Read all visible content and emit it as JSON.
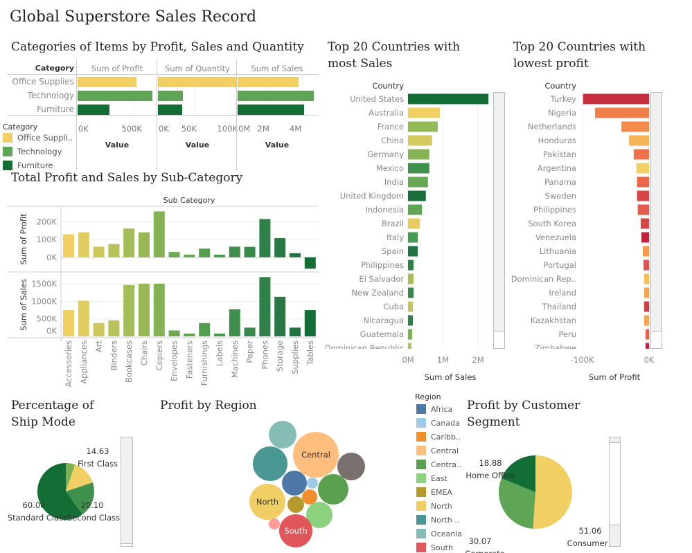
{
  "title": "Global Superstore Sales Record",
  "colors": {
    "office_supplies": "#f1cf63",
    "technology": "#5fa556",
    "furniture": "#136e36"
  },
  "chart_data": [
    {
      "id": "categories",
      "type": "bar",
      "title": "Categories of Items by Profit, Sales and Quantity",
      "row_header": "Category",
      "categories": [
        "Office Supplies",
        "Technology",
        "Furniture"
      ],
      "series": [
        {
          "name": "Sum of Profit",
          "values": [
            519000,
            664000,
            283000
          ],
          "ticks": [
            "0K",
            "500K"
          ],
          "tick_values": [
            0,
            500000
          ],
          "max": 700000
        },
        {
          "name": "Sum of Quantity",
          "values": [
            109000,
            35000,
            34000
          ],
          "ticks": [
            "0K",
            "50K",
            "100K"
          ],
          "tick_values": [
            0,
            50000,
            100000
          ],
          "max": 110000
        },
        {
          "name": "Sum of Sales",
          "values": [
            3790000,
            4740000,
            4110000
          ],
          "ticks": [
            "0M",
            "2M",
            "4M"
          ],
          "tick_values": [
            0,
            2000000,
            4000000
          ],
          "max": 4900000
        }
      ],
      "xlabel": "Value",
      "legend": {
        "title": "Category",
        "items": [
          "Office Suppli..",
          "Technology",
          "Furniture"
        ],
        "placement": "bottom-left"
      }
    },
    {
      "id": "subcategory",
      "type": "bar",
      "title": "Total Profit and Sales by Sub-Category",
      "xlabel": "Sub Category",
      "categories": [
        "Accessories",
        "Appliances",
        "Art",
        "Binders",
        "Bookcases",
        "Chairs",
        "Copiers",
        "Envelopes",
        "Fasteners",
        "Furnishings",
        "Labels",
        "Machines",
        "Paper",
        "Phones",
        "Storage",
        "Supplies",
        "Tables"
      ],
      "series": [
        {
          "name": "Sum of Profit",
          "values": [
            130000,
            141000,
            60000,
            75000,
            162000,
            141000,
            259000,
            30000,
            15000,
            49000,
            15000,
            60000,
            59000,
            216000,
            108000,
            23000,
            -64000
          ],
          "ticks": [
            "200K",
            "100K",
            "0K"
          ],
          "tick_values": [
            200000,
            100000,
            0
          ],
          "ylim": [
            -75000,
            280000
          ]
        },
        {
          "name": "Sum of Sales",
          "values": [
            750000,
            1019000,
            381000,
            456000,
            1469000,
            1506000,
            1506000,
            169000,
            81000,
            381000,
            81000,
            775000,
            250000,
            1694000,
            1131000,
            250000,
            750000
          ],
          "ticks": [
            "1500K",
            "1000K",
            "500K",
            "0K"
          ],
          "tick_values": [
            1500000,
            1000000,
            500000,
            0
          ],
          "ylim": [
            0,
            1800000
          ]
        }
      ],
      "bar_colors": [
        "#f1cf63",
        "#e0cd60",
        "#cdc75b",
        "#b9c25a",
        "#a5bd58",
        "#96b955",
        "#84b152",
        "#6eaa51",
        "#62a551",
        "#529f50",
        "#479a4e",
        "#3e904c",
        "#37894a",
        "#2f8048",
        "#2a7746",
        "#217241",
        "#136e36"
      ]
    },
    {
      "id": "top-sales",
      "type": "bar",
      "title": "Top 20 Countries with most Sales",
      "row_header": "Country",
      "xlabel": "Sum of Sales",
      "ticks": [
        "0M",
        "1M",
        "2M"
      ],
      "tick_values": [
        0,
        1000000,
        2000000
      ],
      "xlim": [
        0,
        2450000
      ],
      "categories": [
        "United States",
        "Australia",
        "France",
        "China",
        "Germany",
        "Mexico",
        "India",
        "United Kingdom",
        "Indonesia",
        "Brazil",
        "Italy",
        "Spain",
        "Philippines",
        "El Salvador",
        "New Zealand",
        "Cuba",
        "Nicaragua",
        "Guatemala",
        "Dominican Republic"
      ],
      "values": [
        2300000,
        910000,
        850000,
        690000,
        610000,
        610000,
        570000,
        510000,
        400000,
        340000,
        280000,
        280000,
        160000,
        160000,
        160000,
        140000,
        140000,
        120000,
        100000
      ],
      "bar_colors": [
        "#136e36",
        "#f1cf63",
        "#93b957",
        "#d5ca5f",
        "#86b455",
        "#3e904c",
        "#66a853",
        "#1a6c38",
        "#5ea556",
        "#e8cc60",
        "#459a4f",
        "#217241",
        "#2f8048",
        "#a8bf59",
        "#37894a",
        "#c4c45c",
        "#2f8048",
        "#7cb052",
        "#b0c25a"
      ]
    },
    {
      "id": "lowest-profit",
      "type": "bar",
      "title": "Top 20 Countries with lowest profit",
      "row_header": "Country",
      "xlabel": "Sum of Profit",
      "ticks": [
        "-100K",
        "0K"
      ],
      "tick_values": [
        -100000,
        0
      ],
      "xlim": [
        -101000,
        0
      ],
      "categories": [
        "Turkey",
        "Nigeria",
        "Netherlands",
        "Honduras",
        "Pakistan",
        "Argentina",
        "Panama",
        "Sweden",
        "Philippines",
        "South Korea",
        "Venezuela",
        "Lithuania",
        "Portugal",
        "Dominican Rep..",
        "Ireland",
        "Thailand",
        "Kazakhstan",
        "Peru",
        "Zimbabwe"
      ],
      "values": [
        -99000,
        -81000,
        -41500,
        -30000,
        -23000,
        -19000,
        -18000,
        -18000,
        -17000,
        -12500,
        -11400,
        -9300,
        -8300,
        -7300,
        -7300,
        -7300,
        -7300,
        -5200,
        -5200
      ],
      "bar_colors": [
        "#c52f40",
        "#f17f49",
        "#f58b4b",
        "#f5b257",
        "#ef7149",
        "#f1cf63",
        "#ea6849",
        "#d74545",
        "#e35b4a",
        "#d74545",
        "#c1233f",
        "#f7974f",
        "#e0524a",
        "#f4bd5a",
        "#f6a352",
        "#d23e45",
        "#f6a352",
        "#e8604a",
        "#c1233f"
      ]
    },
    {
      "id": "ship-mode",
      "type": "pie",
      "title": "Percentage of Ship Mode",
      "slices": [
        {
          "label": "",
          "value": 5.27,
          "color": "#7cb052"
        },
        {
          "label": "First Class",
          "value": 14.63,
          "color": "#f1cf63"
        },
        {
          "label": "Second Class",
          "value": 20.1,
          "color": "#3e904c"
        },
        {
          "label": "Standard Class",
          "value": 60.0,
          "color": "#136e36"
        }
      ]
    },
    {
      "id": "region",
      "type": "bubble",
      "title": "Profit by Region",
      "legend": {
        "title": "Region",
        "placement": "right",
        "items": [
          {
            "label": "Africa",
            "color": "#4e79a7"
          },
          {
            "label": "Canada",
            "color": "#a0cbe8"
          },
          {
            "label": "Caribb..",
            "color": "#f28e2b"
          },
          {
            "label": "Central",
            "color": "#ffbe7d"
          },
          {
            "label": "Centra..",
            "color": "#59a14f"
          },
          {
            "label": "East",
            "color": "#8cd17d"
          },
          {
            "label": "EMEA",
            "color": "#b6992d"
          },
          {
            "label": "North",
            "color": "#f1ce63"
          },
          {
            "label": "North ..",
            "color": "#499894"
          },
          {
            "label": "Oceania",
            "color": "#86bcb6"
          },
          {
            "label": "South",
            "color": "#e15759"
          }
        ]
      },
      "bubbles": [
        {
          "region": "Oceania",
          "color": "#86bcb6",
          "label": ""
        },
        {
          "region": "Central",
          "color": "#ffbe7d",
          "label": "Central"
        },
        {
          "region": "North ..",
          "color": "#499894",
          "label": ""
        },
        {
          "region": "",
          "color": "#79706e",
          "label": ""
        },
        {
          "region": "Africa",
          "color": "#4e79a7",
          "label": ""
        },
        {
          "region": "Canada",
          "color": "#a0cbe8",
          "label": ""
        },
        {
          "region": "Centra..",
          "color": "#59a14f",
          "label": ""
        },
        {
          "region": "North",
          "color": "#f1ce63",
          "label": "North"
        },
        {
          "region": "Caribb..",
          "color": "#f28e2b",
          "label": ""
        },
        {
          "region": "EMEA",
          "color": "#b6992d",
          "label": ""
        },
        {
          "region": "East",
          "color": "#8cd17d",
          "label": ""
        },
        {
          "region": "",
          "color": "#ff9d9a",
          "label": ""
        },
        {
          "region": "South",
          "color": "#e15759",
          "label": "South"
        }
      ]
    },
    {
      "id": "segment",
      "type": "pie",
      "title": "Profit by Customer Segment",
      "slices": [
        {
          "label": "Consumer",
          "value": 51.06,
          "color": "#f1cf63"
        },
        {
          "label": "Corporate",
          "value": 30.07,
          "color": "#5fa556"
        },
        {
          "label": "Home Office",
          "value": 18.88,
          "color": "#136e36"
        }
      ]
    }
  ]
}
